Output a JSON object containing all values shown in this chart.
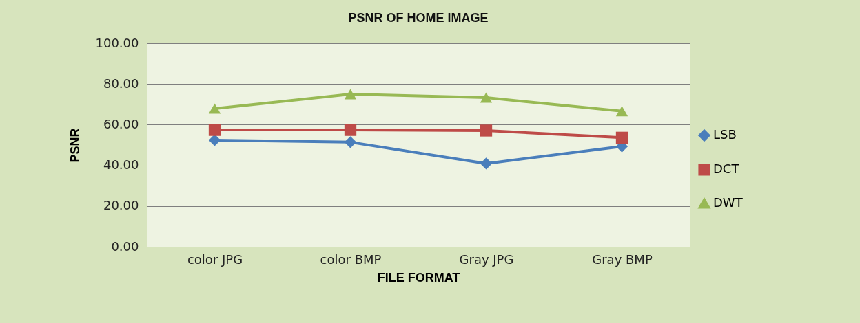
{
  "chart_data": {
    "type": "line",
    "title": "PSNR OF HOME IMAGE",
    "xlabel": "FILE FORMAT",
    "ylabel": "PSNR",
    "categories": [
      "color JPG",
      "color BMP",
      "Gray JPG",
      "Gray BMP"
    ],
    "series": [
      {
        "name": "LSB",
        "color": "#4a7ebb",
        "marker": "diamond",
        "values": [
          52.4,
          51.4,
          40.9,
          49.3
        ]
      },
      {
        "name": "DCT",
        "color": "#be4b48",
        "marker": "square",
        "values": [
          57.4,
          57.4,
          57.1,
          53.6
        ]
      },
      {
        "name": "DWT",
        "color": "#98b954",
        "marker": "triangle",
        "values": [
          67.9,
          75.0,
          73.3,
          66.6
        ]
      }
    ],
    "ylim": [
      0,
      100
    ],
    "yticks": [
      {
        "value": 0,
        "label": "0.00"
      },
      {
        "value": 20,
        "label": "20.00"
      },
      {
        "value": 40,
        "label": "40.00"
      },
      {
        "value": 60,
        "label": "60.00"
      },
      {
        "value": 80,
        "label": "80.00"
      },
      {
        "value": 100,
        "label": "100.00"
      }
    ],
    "grid": "y",
    "legend": "right",
    "line_style": "solid"
  }
}
